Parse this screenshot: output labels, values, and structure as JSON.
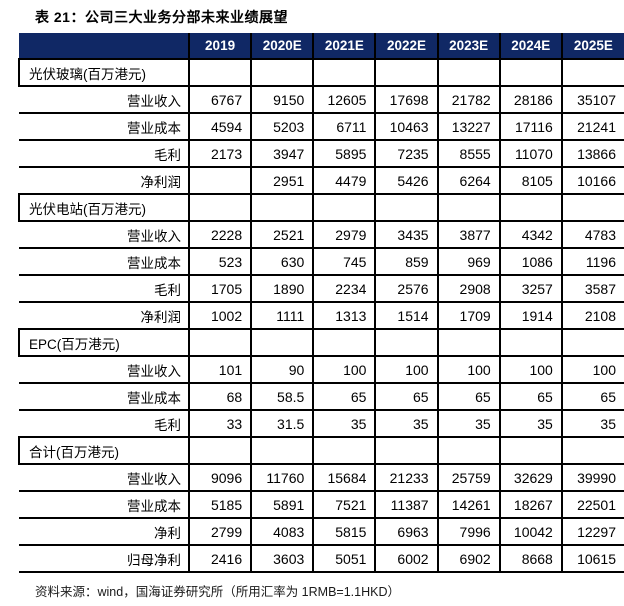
{
  "title": "表 21：公司三大业务分部未来业绩展望",
  "footer": "资料来源：wind，国海证券研究所（所用汇率为 1RMB=1.1HKD）",
  "colors": {
    "header_bg": "#102865",
    "border": "#000000"
  },
  "table": {
    "year_headers": [
      "2019",
      "2020E",
      "2021E",
      "2022E",
      "2023E",
      "2024E",
      "2025E"
    ],
    "sections": [
      {
        "name": "光伏玻璃(百万港元)",
        "rows": [
          {
            "label": "营业收入",
            "values": [
              "6767",
              "9150",
              "12605",
              "17698",
              "21782",
              "28186",
              "35107"
            ]
          },
          {
            "label": "营业成本",
            "values": [
              "4594",
              "5203",
              "6711",
              "10463",
              "13227",
              "17116",
              "21241"
            ]
          },
          {
            "label": "毛利",
            "values": [
              "2173",
              "3947",
              "5895",
              "7235",
              "8555",
              "11070",
              "13866"
            ]
          },
          {
            "label": "净利润",
            "values": [
              "",
              "2951",
              "4479",
              "5426",
              "6264",
              "8105",
              "10166"
            ]
          }
        ]
      },
      {
        "name": "光伏电站(百万港元)",
        "rows": [
          {
            "label": "营业收入",
            "values": [
              "2228",
              "2521",
              "2979",
              "3435",
              "3877",
              "4342",
              "4783"
            ]
          },
          {
            "label": "营业成本",
            "values": [
              "523",
              "630",
              "745",
              "859",
              "969",
              "1086",
              "1196"
            ]
          },
          {
            "label": "毛利",
            "values": [
              "1705",
              "1890",
              "2234",
              "2576",
              "2908",
              "3257",
              "3587"
            ]
          },
          {
            "label": "净利润",
            "values": [
              "1002",
              "1111",
              "1313",
              "1514",
              "1709",
              "1914",
              "2108"
            ]
          }
        ]
      },
      {
        "name": "EPC(百万港元)",
        "rows": [
          {
            "label": "营业收入",
            "values": [
              "101",
              "90",
              "100",
              "100",
              "100",
              "100",
              "100"
            ]
          },
          {
            "label": "营业成本",
            "values": [
              "68",
              "58.5",
              "65",
              "65",
              "65",
              "65",
              "65"
            ]
          },
          {
            "label": "毛利",
            "values": [
              "33",
              "31.5",
              "35",
              "35",
              "35",
              "35",
              "35"
            ]
          }
        ]
      },
      {
        "name": "合计(百万港元)",
        "rows": [
          {
            "label": "营业收入",
            "values": [
              "9096",
              "11760",
              "15684",
              "21233",
              "25759",
              "32629",
              "39990"
            ]
          },
          {
            "label": "营业成本",
            "values": [
              "5185",
              "5891",
              "7521",
              "11387",
              "14261",
              "18267",
              "22501"
            ]
          },
          {
            "label": "净利",
            "values": [
              "2799",
              "4083",
              "5815",
              "6963",
              "7996",
              "10042",
              "12297"
            ]
          },
          {
            "label": "归母净利",
            "values": [
              "2416",
              "3603",
              "5051",
              "6002",
              "6902",
              "8668",
              "10615"
            ]
          }
        ]
      }
    ]
  }
}
